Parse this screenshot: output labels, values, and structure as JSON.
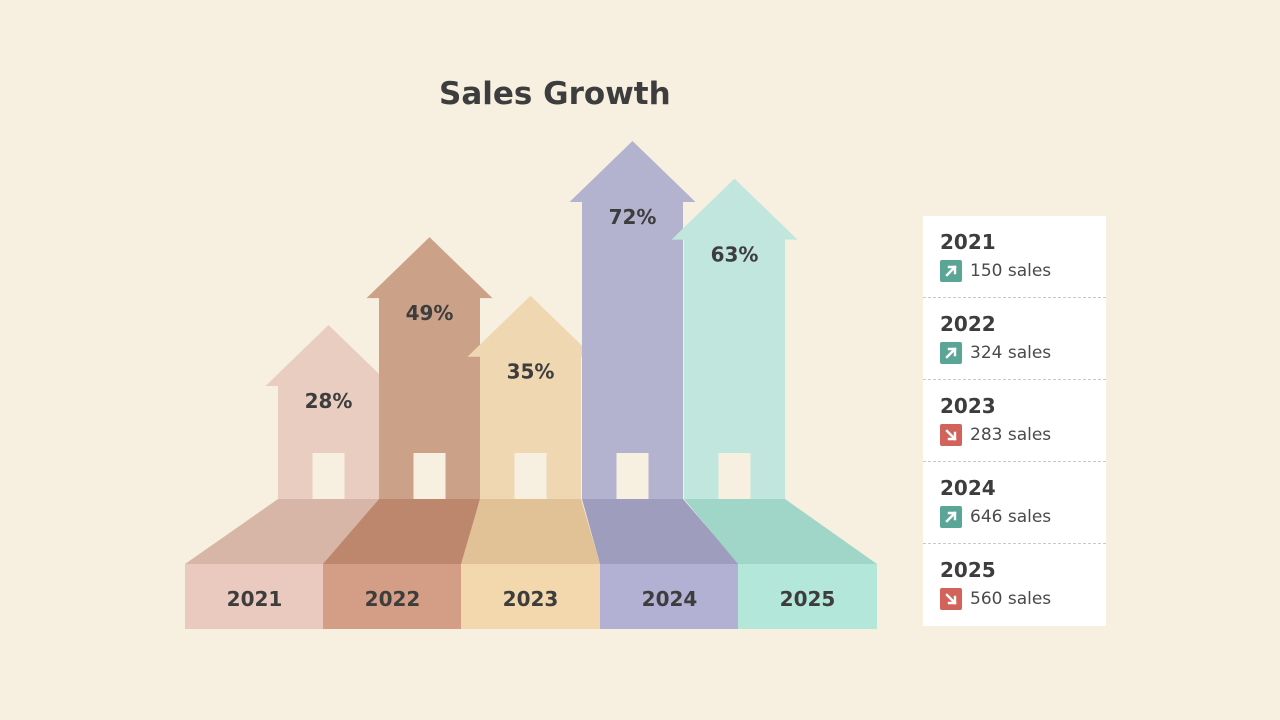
{
  "chart_data": {
    "type": "bar",
    "title": "Sales Growth",
    "categories": [
      "2021",
      "2022",
      "2023",
      "2024",
      "2025"
    ],
    "series": [
      {
        "values": [
          28,
          49,
          35,
          72,
          63
        ]
      }
    ],
    "value_labels": [
      "28%",
      "49%",
      "35%",
      "72%",
      "63%"
    ],
    "ylim": [
      0,
      80
    ],
    "grid": false,
    "legend_placement": "right"
  },
  "colors": {
    "background": "#f7f0e1",
    "arrows": [
      "#e9cdc1",
      "#cba287",
      "#efd7b2",
      "#b4b3cf",
      "#c1e6dd"
    ],
    "floors": [
      "#d7b6a7",
      "#bc876d",
      "#e1c297",
      "#9f9dbd",
      "#a0d6c8"
    ],
    "bases": [
      "#eac9bf",
      "#d39e85",
      "#f3d7ad",
      "#b2b1d3",
      "#b3e7da"
    ],
    "door": "#f7f0e1",
    "trend_up": "#5aa596",
    "trend_down": "#d2635a"
  },
  "legend": {
    "items": [
      {
        "year": "2021",
        "sales": "150 sales",
        "trend": "up"
      },
      {
        "year": "2022",
        "sales": "324 sales",
        "trend": "up"
      },
      {
        "year": "2023",
        "sales": "283 sales",
        "trend": "down"
      },
      {
        "year": "2024",
        "sales": "646 sales",
        "trend": "up"
      },
      {
        "year": "2025",
        "sales": "560 sales",
        "trend": "down"
      }
    ]
  }
}
